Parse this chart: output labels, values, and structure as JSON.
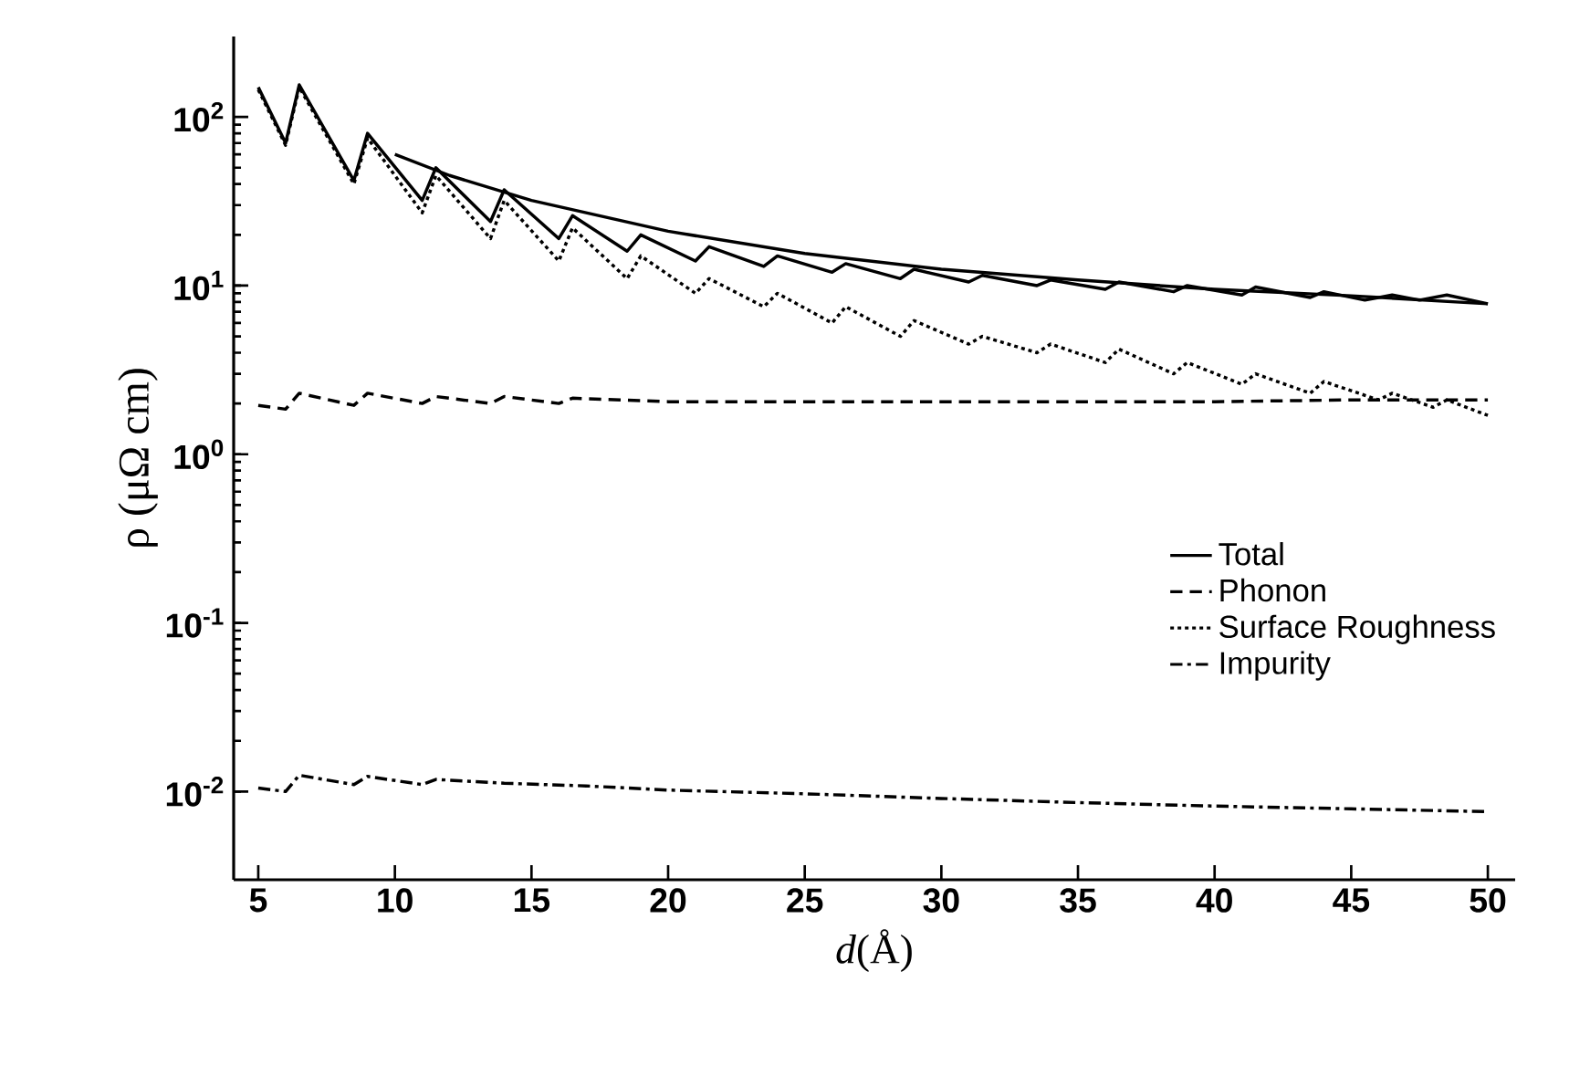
{
  "chart_data": {
    "type": "line",
    "xlabel": "*d*(Å)",
    "ylabel": "ρ (μΩ cm)",
    "log": "y",
    "xlim": [
      4.1,
      51
    ],
    "xticks": [
      5,
      10,
      15,
      20,
      25,
      30,
      35,
      40,
      45,
      50
    ],
    "ylim": [
      0.003,
      300
    ],
    "yticks": [
      {
        "value": 0.01,
        "label": "10$^{-2}$"
      },
      {
        "value": 0.1,
        "label": "10$^{-1}$"
      },
      {
        "value": 1,
        "label": "10$^{0}$"
      },
      {
        "value": 10,
        "label": "10$^{1}$"
      },
      {
        "value": 100,
        "label": "10$^{2}$"
      }
    ],
    "grid": false,
    "legend": "right",
    "marker": "none",
    "series": [
      {
        "name": "Total",
        "color": "#000000",
        "line_style": "solid",
        "x": [
          5,
          6,
          6.5,
          8.5,
          9,
          11,
          11.5,
          13.5,
          14,
          16,
          16.5,
          18.5,
          19,
          21,
          21.5,
          23.5,
          24,
          26,
          26.5,
          28.5,
          29,
          31,
          31.5,
          33.5,
          34,
          36,
          36.5,
          38.5,
          39,
          41,
          41.5,
          43.5,
          44,
          45.5,
          46.5,
          47.5,
          48.5,
          50
        ],
        "values": [
          150,
          70,
          155,
          42,
          80,
          32,
          50,
          24,
          37,
          19,
          26,
          16,
          20,
          14,
          17,
          13,
          15,
          12,
          13.5,
          11,
          12.5,
          10.5,
          11.5,
          10,
          10.8,
          9.5,
          10.5,
          9.2,
          10,
          8.8,
          9.8,
          8.5,
          9.2,
          8.2,
          8.8,
          8.2,
          8.8,
          7.8
        ]
      },
      {
        "color": "#000000",
        "line_style": "solid",
        "x": [
          10,
          12,
          15,
          20,
          25,
          30,
          35,
          40,
          45,
          50
        ],
        "values": [
          60,
          45,
          32,
          21,
          15.5,
          12.5,
          10.8,
          9.5,
          8.7,
          7.8
        ]
      },
      {
        "name": "Phonon",
        "color": "#000000",
        "line_style": "dashed",
        "x": [
          5,
          6,
          6.5,
          8.5,
          9,
          11,
          11.5,
          13.5,
          14,
          16,
          16.5,
          20,
          25,
          30,
          35,
          40,
          45,
          50
        ],
        "values": [
          1.95,
          1.85,
          2.3,
          1.95,
          2.3,
          2.0,
          2.2,
          2.0,
          2.2,
          2.0,
          2.15,
          2.05,
          2.05,
          2.05,
          2.05,
          2.05,
          2.1,
          2.1
        ]
      },
      {
        "name": "Surface Roughness",
        "color": "#000000",
        "line_style": "dotted",
        "x": [
          5,
          6,
          6.5,
          8.5,
          9,
          11,
          11.5,
          13.5,
          14,
          16,
          16.5,
          18.5,
          19,
          21,
          21.5,
          23.5,
          24,
          26,
          26.5,
          28.5,
          29,
          31,
          31.5,
          33.5,
          34,
          36,
          36.5,
          38.5,
          39,
          41,
          41.5,
          43.5,
          44,
          46,
          46.5,
          48,
          48.5,
          50
        ],
        "values": [
          145,
          68,
          150,
          40,
          75,
          27,
          45,
          19,
          32,
          14,
          22,
          11,
          15,
          9,
          11,
          7.5,
          9,
          6,
          7.5,
          5,
          6.2,
          4.5,
          5,
          4,
          4.5,
          3.5,
          4.2,
          3,
          3.5,
          2.6,
          3,
          2.3,
          2.7,
          2.1,
          2.3,
          1.9,
          2.1,
          1.7
        ]
      },
      {
        "name": "Impurity",
        "color": "#000000",
        "line_style": "dashdot",
        "x": [
          5,
          6,
          6.5,
          8.5,
          9,
          11,
          11.5,
          14,
          17,
          20,
          25,
          30,
          35,
          40,
          45,
          50
        ],
        "values": [
          0.0105,
          0.01,
          0.0125,
          0.011,
          0.0123,
          0.011,
          0.0118,
          0.0112,
          0.0108,
          0.0102,
          0.0097,
          0.0091,
          0.0086,
          0.0082,
          0.0079,
          0.0076
        ]
      }
    ]
  }
}
